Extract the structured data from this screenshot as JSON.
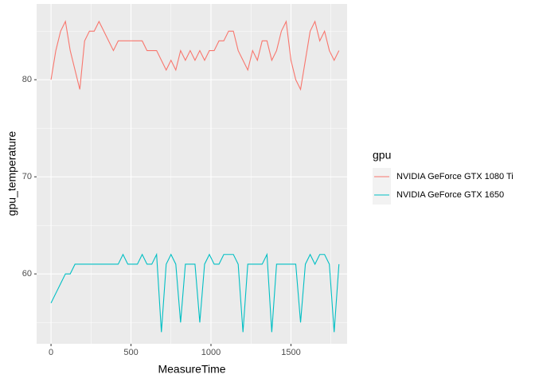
{
  "chart_data": {
    "type": "line",
    "x_label": "MeasureTime",
    "y_label": "gpu_temperature",
    "legend_title": "gpu",
    "legend_position": "right",
    "x": [
      0,
      30,
      60,
      90,
      120,
      150,
      180,
      210,
      240,
      270,
      300,
      330,
      360,
      390,
      420,
      450,
      480,
      510,
      540,
      570,
      600,
      630,
      660,
      690,
      720,
      750,
      780,
      810,
      840,
      870,
      900,
      930,
      960,
      990,
      1020,
      1050,
      1080,
      1110,
      1140,
      1170,
      1200,
      1230,
      1260,
      1290,
      1320,
      1350,
      1380,
      1410,
      1440,
      1470,
      1500,
      1530,
      1560,
      1590,
      1620,
      1650,
      1680,
      1710,
      1740,
      1770,
      1800
    ],
    "series": [
      {
        "name": "NVIDIA GeForce GTX 1080 Ti",
        "color": "#f8766d",
        "values": [
          80,
          83,
          85,
          86,
          83,
          81,
          79,
          84,
          85,
          85,
          86,
          85,
          84,
          83,
          84,
          84,
          84,
          84,
          84,
          84,
          83,
          83,
          83,
          82,
          81,
          82,
          81,
          83,
          82,
          83,
          82,
          83,
          82,
          83,
          83,
          84,
          84,
          85,
          85,
          83,
          82,
          81,
          83,
          82,
          84,
          84,
          82,
          83,
          85,
          86,
          82,
          80,
          79,
          82,
          85,
          86,
          84,
          85,
          83,
          82,
          83
        ]
      },
      {
        "name": "NVIDIA GeForce GTX 1650",
        "color": "#00bfc4",
        "values": [
          57,
          58,
          59,
          60,
          60,
          61,
          61,
          61,
          61,
          61,
          61,
          61,
          61,
          61,
          61,
          62,
          61,
          61,
          61,
          62,
          61,
          61,
          62,
          54,
          61,
          62,
          61,
          55,
          61,
          61,
          61,
          55,
          61,
          62,
          61,
          61,
          62,
          62,
          62,
          61,
          54,
          61,
          61,
          61,
          61,
          62,
          54,
          61,
          61,
          61,
          61,
          61,
          55,
          61,
          62,
          61,
          62,
          62,
          61,
          54,
          61
        ]
      }
    ],
    "xlim": [
      -90,
      1851
    ],
    "ylim": [
      52.8,
      87.8
    ],
    "xticks": [
      0,
      500,
      1000,
      1500
    ],
    "yticks": [
      60,
      70,
      80
    ],
    "x_minor_grid": [
      250,
      750,
      1250,
      1750
    ],
    "y_minor_grid": [
      55,
      65,
      75,
      85
    ],
    "grid": true
  }
}
